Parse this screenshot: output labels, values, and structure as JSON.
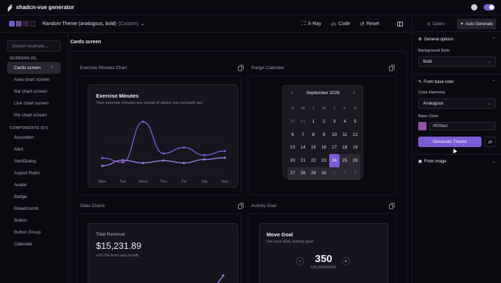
{
  "app": {
    "name": "shadcn-vue generator"
  },
  "toolbar": {
    "swatch_colors": [
      "#7c5cd6",
      "#6a4d8e",
      "#3b2040",
      "#141218"
    ],
    "theme_name": "Random Theme (analogous, bold)",
    "theme_mode": "(Custom)",
    "xray_label": "X-Ray",
    "code_label": "Code",
    "reset_label": "Reset"
  },
  "sidebar": {
    "search_placeholder": "Search example...",
    "screens_heading": "SCREENS (5)",
    "screens": [
      "Cards screen",
      "Area chart screen",
      "Bar chart screen",
      "Line chart screen",
      "Pie chart screen"
    ],
    "components_heading": "COMPONENTS (57)",
    "components": [
      "Accordion",
      "Alert",
      "AlertDialog",
      "Aspect Ratio",
      "Avatar",
      "Badge",
      "Breadcrumb",
      "Button",
      "Button Group",
      "Calendar"
    ]
  },
  "main": {
    "screen_title": "Cards screen",
    "sections": {
      "exercise_chart": "Exercise Minutes Chart",
      "range_calendar": "Range Calendar",
      "stats_charts": "Stats Charts",
      "activity_goal": "Activity Goal"
    },
    "exercise_card": {
      "title": "Exercise Minutes",
      "subtitle": "Your exercise minutes are ahead of where you normally are."
    },
    "calendar": {
      "month": "September 2026",
      "weekdays": [
        "S",
        "M",
        "T",
        "W",
        "T",
        "F",
        "S"
      ],
      "weeks": [
        [
          "30",
          "31",
          "1",
          "2",
          "3",
          "4",
          "5"
        ],
        [
          "6",
          "7",
          "8",
          "9",
          "10",
          "11",
          "12"
        ],
        [
          "13",
          "14",
          "15",
          "16",
          "17",
          "18",
          "19"
        ],
        [
          "20",
          "21",
          "22",
          "23",
          "24",
          "25",
          "26"
        ],
        [
          "27",
          "28",
          "29",
          "30",
          "1",
          "2",
          "3"
        ]
      ],
      "outside_days": [
        "0-0",
        "0-1",
        "4-4",
        "4-5",
        "4-6"
      ],
      "selected_start": "24",
      "range_cells": [
        "3-4",
        "3-5",
        "3-6",
        "4-0",
        "4-1",
        "4-2",
        "4-3",
        "4-4",
        "4-5",
        "4-6"
      ]
    },
    "revenue_card": {
      "title": "Total Revenue",
      "value": "$15,231.89",
      "delta": "+20.1% from last month"
    },
    "move_goal": {
      "title": "Move Goal",
      "subtitle": "Set your daily activity goal.",
      "minus": "−",
      "plus": "+",
      "value": "350",
      "unit": "CALORIES/DAY"
    }
  },
  "chart_data": {
    "type": "line",
    "categories": [
      "Mon",
      "Tue",
      "Wed",
      "Thu",
      "Fri",
      "Sat",
      "Sun"
    ],
    "series": [
      {
        "values": [
          42,
          30,
          145,
          55,
          72,
          50,
          62
        ],
        "color": "#7c5cd6"
      },
      {
        "values": [
          20,
          36,
          28,
          35,
          28,
          38,
          43
        ],
        "color": "#9b7fe0"
      }
    ],
    "ylim": [
      0,
      170
    ]
  },
  "right_panel": {
    "tab_colors": "Colors",
    "tab_auto": "Auto Generate",
    "general_title": "General options",
    "bg_style_label": "Background Style",
    "bg_style_value": "Bold",
    "base_color_title": "From base color",
    "harmony_label": "Color Harmony",
    "harmony_value": "Analogous",
    "base_color_label": "Base Color",
    "base_color_hex": "#9155a1",
    "generate_label": "Generate Theme",
    "from_image_title": "From image"
  }
}
